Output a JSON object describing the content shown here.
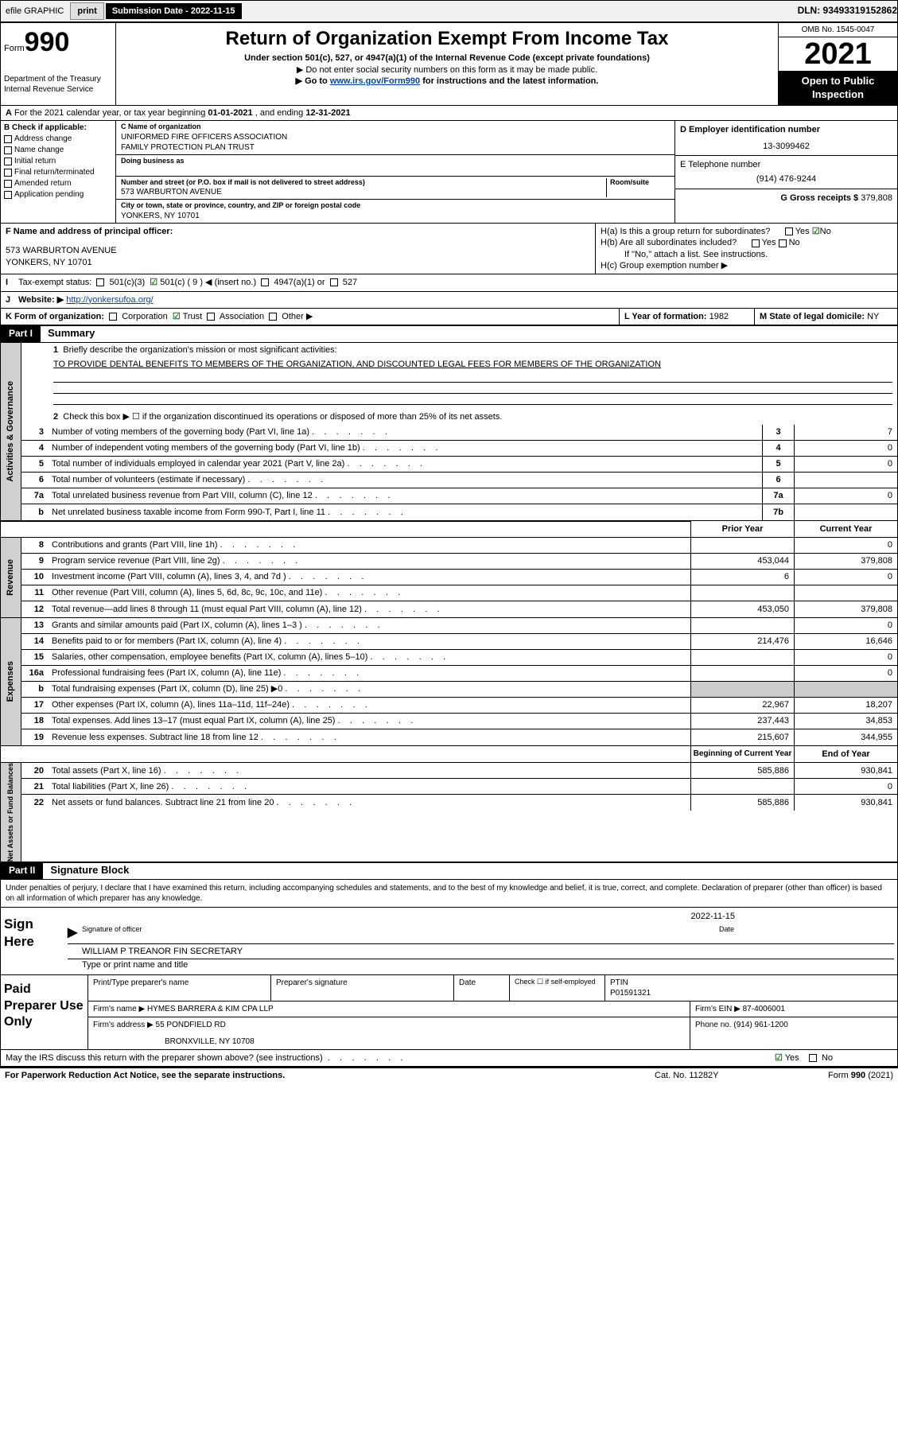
{
  "topbar": {
    "efile": "efile GRAPHIC",
    "print": "print",
    "submission_label": "Submission Date - 2022-11-15",
    "dln": "DLN: 93493319152862"
  },
  "header": {
    "form_label": "Form",
    "form_number": "990",
    "dept": "Department of the Treasury",
    "irs": "Internal Revenue Service",
    "title": "Return of Organization Exempt From Income Tax",
    "sub1": "Under section 501(c), 527, or 4947(a)(1) of the Internal Revenue Code (except private foundations)",
    "sub2": "▶ Do not enter social security numbers on this form as it may be made public.",
    "sub3_pre": "▶ Go to ",
    "sub3_link": "www.irs.gov/Form990",
    "sub3_post": " for instructions and the latest information.",
    "omb": "OMB No. 1545-0047",
    "year": "2021",
    "open": "Open to Public Inspection"
  },
  "rowA": {
    "text_pre": "For the 2021 calendar year, or tax year beginning ",
    "begin": "01-01-2021",
    "mid": " , and ending ",
    "end": "12-31-2021"
  },
  "sectionB": {
    "check_label": "B Check if applicable:",
    "checks": [
      "Address change",
      "Name change",
      "Initial return",
      "Final return/terminated",
      "Amended return",
      "Application pending"
    ],
    "c_label": "C Name of organization",
    "org1": "UNIFORMED FIRE OFFICERS ASSOCIATION",
    "org2": "FAMILY PROTECTION PLAN TRUST",
    "dba_label": "Doing business as",
    "addr_label": "Number and street (or P.O. box if mail is not delivered to street address)",
    "room_label": "Room/suite",
    "addr": "573 WARBURTON AVENUE",
    "city_label": "City or town, state or province, country, and ZIP or foreign postal code",
    "city": "YONKERS, NY  10701",
    "d_label": "D Employer identification number",
    "ein": "13-3099462",
    "e_label": "E Telephone number",
    "phone": "(914) 476-9244",
    "g_label": "G Gross receipts $",
    "gross": "379,808"
  },
  "sectionF": {
    "f_label": "F Name and address of principal officer:",
    "addr1": "573 WARBURTON AVENUE",
    "addr2": "YONKERS, NY  10701",
    "ha": "H(a)  Is this a group return for subordinates?",
    "ha_yes": "Yes",
    "ha_no": "No",
    "hb": "H(b)  Are all subordinates included?",
    "hb_yes": "Yes",
    "hb_no": "No",
    "hb_note": "If \"No,\" attach a list. See instructions.",
    "hc": "H(c)  Group exemption number ▶"
  },
  "rowI": {
    "label": "Tax-exempt status:",
    "o1": "501(c)(3)",
    "o2": "501(c) ( 9 ) ◀ (insert no.)",
    "o3": "4947(a)(1) or",
    "o4": "527"
  },
  "rowJ": {
    "label": "Website: ▶",
    "url": "http://yonkersufoa.org/"
  },
  "rowK": {
    "label": "K Form of organization:",
    "o1": "Corporation",
    "o2": "Trust",
    "o3": "Association",
    "o4": "Other ▶",
    "l_label": "L Year of formation:",
    "l_val": "1982",
    "m_label": "M State of legal domicile:",
    "m_val": "NY"
  },
  "part1": {
    "header": "Part I",
    "title": "Summary",
    "q1": "Briefly describe the organization's mission or most significant activities:",
    "mission": "TO PROVIDE DENTAL BENEFITS TO MEMBERS OF THE ORGANIZATION, AND DISCOUNTED LEGAL FEES FOR MEMBERS OF THE ORGANIZATION",
    "q2": "Check this box ▶ ☐  if the organization discontinued its operations or disposed of more than 25% of its net assets.",
    "lines_gov": [
      {
        "n": "3",
        "d": "Number of voting members of the governing body (Part VI, line 1a)",
        "box": "3",
        "v": "7"
      },
      {
        "n": "4",
        "d": "Number of independent voting members of the governing body (Part VI, line 1b)",
        "box": "4",
        "v": "0"
      },
      {
        "n": "5",
        "d": "Total number of individuals employed in calendar year 2021 (Part V, line 2a)",
        "box": "5",
        "v": "0"
      },
      {
        "n": "6",
        "d": "Total number of volunteers (estimate if necessary)",
        "box": "6",
        "v": ""
      },
      {
        "n": "7a",
        "d": "Total unrelated business revenue from Part VIII, column (C), line 12",
        "box": "7a",
        "v": "0"
      },
      {
        "n": "b",
        "d": "Net unrelated business taxable income from Form 990-T, Part I, line 11",
        "box": "7b",
        "v": ""
      }
    ],
    "col_prior": "Prior Year",
    "col_current": "Current Year",
    "lines_rev": [
      {
        "n": "8",
        "d": "Contributions and grants (Part VIII, line 1h)",
        "p": "",
        "c": "0"
      },
      {
        "n": "9",
        "d": "Program service revenue (Part VIII, line 2g)",
        "p": "453,044",
        "c": "379,808"
      },
      {
        "n": "10",
        "d": "Investment income (Part VIII, column (A), lines 3, 4, and 7d )",
        "p": "6",
        "c": "0"
      },
      {
        "n": "11",
        "d": "Other revenue (Part VIII, column (A), lines 5, 6d, 8c, 9c, 10c, and 11e)",
        "p": "",
        "c": ""
      },
      {
        "n": "12",
        "d": "Total revenue—add lines 8 through 11 (must equal Part VIII, column (A), line 12)",
        "p": "453,050",
        "c": "379,808"
      }
    ],
    "lines_exp": [
      {
        "n": "13",
        "d": "Grants and similar amounts paid (Part IX, column (A), lines 1–3 )",
        "p": "",
        "c": "0"
      },
      {
        "n": "14",
        "d": "Benefits paid to or for members (Part IX, column (A), line 4)",
        "p": "214,476",
        "c": "16,646"
      },
      {
        "n": "15",
        "d": "Salaries, other compensation, employee benefits (Part IX, column (A), lines 5–10)",
        "p": "",
        "c": "0"
      },
      {
        "n": "16a",
        "d": "Professional fundraising fees (Part IX, column (A), line 11e)",
        "p": "",
        "c": "0"
      },
      {
        "n": "b",
        "d": "Total fundraising expenses (Part IX, column (D), line 25) ▶0",
        "p": "shaded",
        "c": "shaded"
      },
      {
        "n": "17",
        "d": "Other expenses (Part IX, column (A), lines 11a–11d, 11f–24e)",
        "p": "22,967",
        "c": "18,207"
      },
      {
        "n": "18",
        "d": "Total expenses. Add lines 13–17 (must equal Part IX, column (A), line 25)",
        "p": "237,443",
        "c": "34,853"
      },
      {
        "n": "19",
        "d": "Revenue less expenses. Subtract line 18 from line 12",
        "p": "215,607",
        "c": "344,955"
      }
    ],
    "col_begin": "Beginning of Current Year",
    "col_end": "End of Year",
    "lines_net": [
      {
        "n": "20",
        "d": "Total assets (Part X, line 16)",
        "p": "585,886",
        "c": "930,841"
      },
      {
        "n": "21",
        "d": "Total liabilities (Part X, line 26)",
        "p": "",
        "c": "0"
      },
      {
        "n": "22",
        "d": "Net assets or fund balances. Subtract line 21 from line 20",
        "p": "585,886",
        "c": "930,841"
      }
    ],
    "vert_gov": "Activities & Governance",
    "vert_rev": "Revenue",
    "vert_exp": "Expenses",
    "vert_net": "Net Assets or Fund Balances"
  },
  "part2": {
    "header": "Part II",
    "title": "Signature Block",
    "declaration": "Under penalties of perjury, I declare that I have examined this return, including accompanying schedules and statements, and to the best of my knowledge and belief, it is true, correct, and complete. Declaration of preparer (other than officer) is based on all information of which preparer has any knowledge.",
    "sign_here": "Sign Here",
    "sig_officer": "Signature of officer",
    "date_label": "Date",
    "date": "2022-11-15",
    "name": "WILLIAM P TREANOR  FIN SECRETARY",
    "name_label": "Type or print name and title",
    "paid": "Paid Preparer Use Only",
    "pp_name_label": "Print/Type preparer's name",
    "pp_sig_label": "Preparer's signature",
    "pp_date_label": "Date",
    "pp_check": "Check ☐ if self-employed",
    "ptin_label": "PTIN",
    "ptin": "P01591321",
    "firm_name_label": "Firm's name    ▶",
    "firm_name": "HYMES BARRERA & KIM CPA LLP",
    "firm_ein_label": "Firm's EIN ▶",
    "firm_ein": "87-4006001",
    "firm_addr_label": "Firm's address ▶",
    "firm_addr1": "55 PONDFIELD RD",
    "firm_addr2": "BRONXVILLE, NY  10708",
    "firm_phone_label": "Phone no.",
    "firm_phone": "(914) 961-1200",
    "may_irs": "May the IRS discuss this return with the preparer shown above? (see instructions)",
    "yes": "Yes",
    "no": "No"
  },
  "footer": {
    "paperwork": "For Paperwork Reduction Act Notice, see the separate instructions.",
    "cat": "Cat. No. 11282Y",
    "form": "Form 990 (2021)"
  }
}
